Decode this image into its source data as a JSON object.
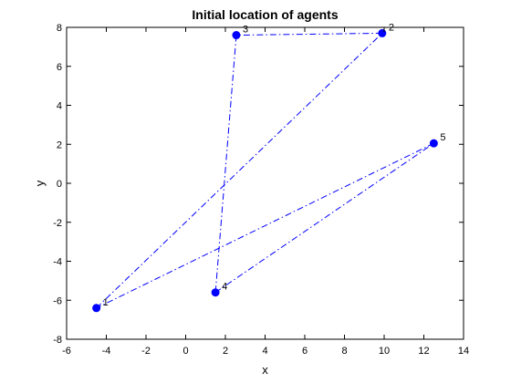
{
  "chart_data": {
    "type": "scatter",
    "title": "Initial location of agents",
    "xlabel": "x",
    "ylabel": "y",
    "xlim": [
      -6,
      14
    ],
    "ylim": [
      -8,
      8
    ],
    "xticks": [
      -6,
      -4,
      -2,
      0,
      2,
      4,
      6,
      8,
      10,
      12,
      14
    ],
    "yticks": [
      -8,
      -6,
      -4,
      -2,
      0,
      2,
      4,
      6,
      8
    ],
    "grid": false,
    "points": [
      {
        "label": "1",
        "x": -4.5,
        "y": -6.4
      },
      {
        "label": "2",
        "x": 9.9,
        "y": 7.7
      },
      {
        "label": "3",
        "x": 2.55,
        "y": 7.6
      },
      {
        "label": "4",
        "x": 1.5,
        "y": -5.6
      },
      {
        "label": "5",
        "x": 12.5,
        "y": 2.05
      }
    ],
    "connections": [
      [
        1,
        2
      ],
      [
        2,
        3
      ],
      [
        3,
        4
      ],
      [
        4,
        5
      ],
      [
        5,
        1
      ]
    ],
    "line_style": "dash-dot",
    "line_color": "#0000ff",
    "marker_color": "#0000ff"
  }
}
